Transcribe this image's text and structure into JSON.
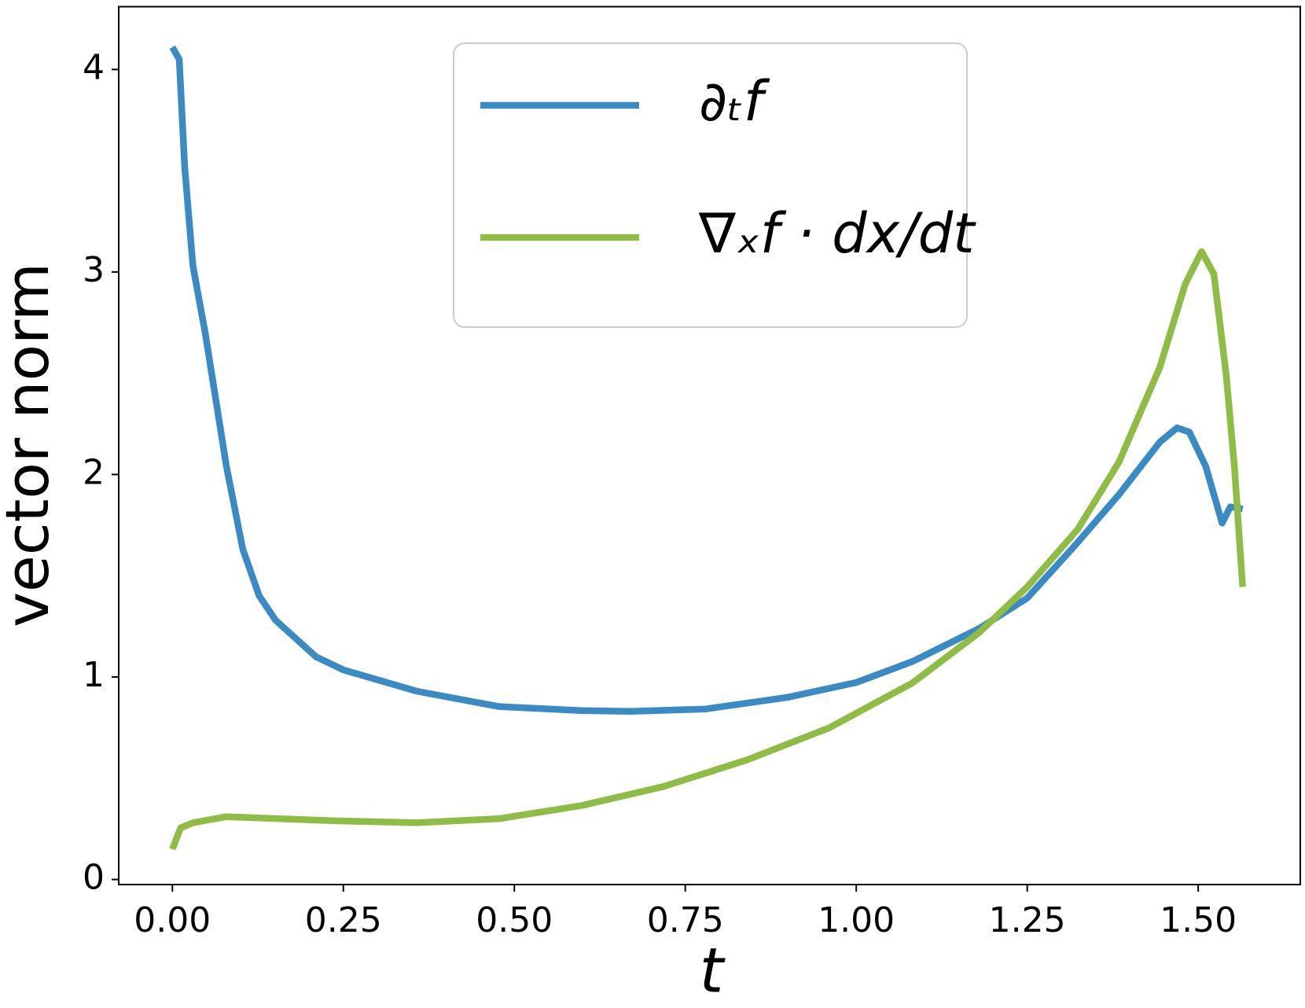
{
  "chart_data": {
    "type": "line",
    "xlabel": "t",
    "ylabel": "vector norm",
    "xlim": [
      -0.0785,
      1.6493
    ],
    "ylim": [
      -0.025,
      4.31
    ],
    "xticks": [
      {
        "value": 0,
        "label": "0.00"
      },
      {
        "value": 0.25,
        "label": "0.25"
      },
      {
        "value": 0.5,
        "label": "0.50"
      },
      {
        "value": 0.75,
        "label": "0.75"
      },
      {
        "value": 1,
        "label": "1.00"
      },
      {
        "value": 1.25,
        "label": "1.25"
      },
      {
        "value": 1.5,
        "label": "1.50"
      }
    ],
    "yticks": [
      0,
      1,
      2,
      3,
      4
    ],
    "grid": false,
    "legend": "upper center",
    "series": [
      {
        "name": "∂ₜf",
        "color": "#3a8bc3",
        "x": [
          0,
          0.01,
          0.018,
          0.03,
          0.048,
          0.079,
          0.103,
          0.127,
          0.151,
          0.21,
          0.25,
          0.357,
          0.477,
          0.598,
          0.67,
          0.78,
          0.9,
          1.0,
          1.082,
          1.18,
          1.25,
          1.32,
          1.384,
          1.444,
          1.469,
          1.487,
          1.511,
          1.535,
          1.547,
          1.565
        ],
        "values": [
          4.11,
          4.05,
          3.52,
          3.03,
          2.7,
          2.04,
          1.63,
          1.4,
          1.28,
          1.1,
          1.035,
          0.93,
          0.854,
          0.834,
          0.83,
          0.842,
          0.9,
          0.973,
          1.076,
          1.24,
          1.39,
          1.65,
          1.9,
          2.16,
          2.23,
          2.21,
          2.04,
          1.76,
          1.84,
          1.83
        ]
      },
      {
        "name": "∇ₓf · dx/dt",
        "color": "#8fbc45",
        "x": [
          0,
          0.012,
          0.03,
          0.079,
          0.236,
          0.357,
          0.477,
          0.598,
          0.719,
          0.84,
          0.961,
          1.082,
          1.18,
          1.25,
          1.324,
          1.384,
          1.444,
          1.481,
          1.505,
          1.523,
          1.541,
          1.553,
          1.565
        ],
        "values": [
          0.15,
          0.255,
          0.28,
          0.31,
          0.29,
          0.28,
          0.3,
          0.365,
          0.46,
          0.59,
          0.75,
          0.97,
          1.22,
          1.445,
          1.73,
          2.06,
          2.53,
          2.94,
          3.1,
          2.99,
          2.49,
          2.04,
          1.445
        ]
      }
    ]
  }
}
